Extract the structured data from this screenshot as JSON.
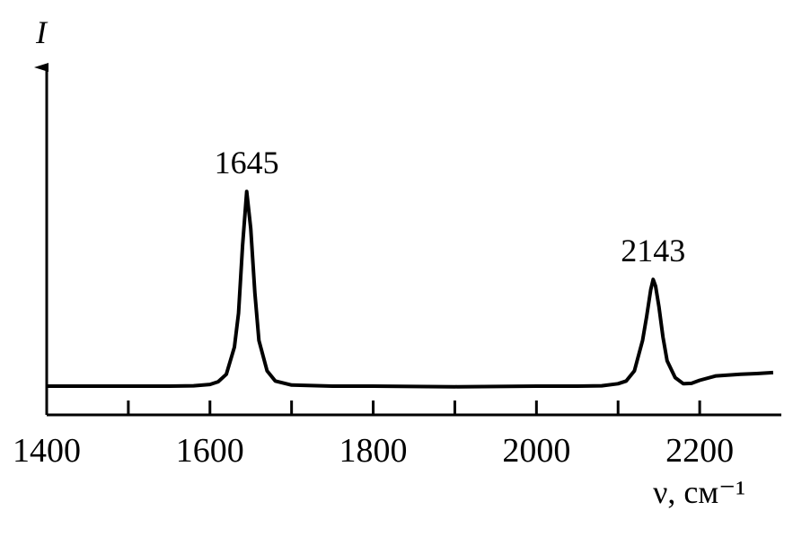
{
  "chart_data": {
    "type": "line",
    "x_label": "ν, см⁻¹",
    "y_label": "I",
    "xlim": [
      1400,
      2300
    ],
    "ylim": [
      0,
      100
    ],
    "xticks": [
      1400,
      1600,
      1800,
      2000,
      2200
    ],
    "minor_xticks": [
      1500,
      1700,
      1900,
      2100
    ],
    "grid": false,
    "x": [
      1400,
      1450,
      1500,
      1550,
      1580,
      1600,
      1610,
      1620,
      1630,
      1635,
      1640,
      1645,
      1650,
      1655,
      1660,
      1670,
      1680,
      1700,
      1750,
      1800,
      1900,
      2000,
      2050,
      2080,
      2100,
      2110,
      2120,
      2130,
      2135,
      2140,
      2143,
      2146,
      2150,
      2155,
      2160,
      2170,
      2180,
      2190,
      2200,
      2220,
      2250,
      2270,
      2290
    ],
    "series": [
      {
        "color": "#000000",
        "values": [
          8.5,
          8.5,
          8.5,
          8.5,
          8.6,
          9,
          9.8,
          12,
          20,
          30,
          50,
          66,
          55,
          36,
          22,
          13,
          10,
          8.8,
          8.5,
          8.5,
          8.3,
          8.5,
          8.5,
          8.6,
          9.2,
          10,
          13,
          22,
          29,
          37,
          40,
          38,
          32,
          23,
          16,
          11,
          9.2,
          9.3,
          10.2,
          11.5,
          12,
          12.2,
          12.5
        ]
      }
    ],
    "annotations": [
      {
        "text": "1645",
        "x": 1645
      },
      {
        "text": "2143",
        "x": 2143
      }
    ]
  }
}
